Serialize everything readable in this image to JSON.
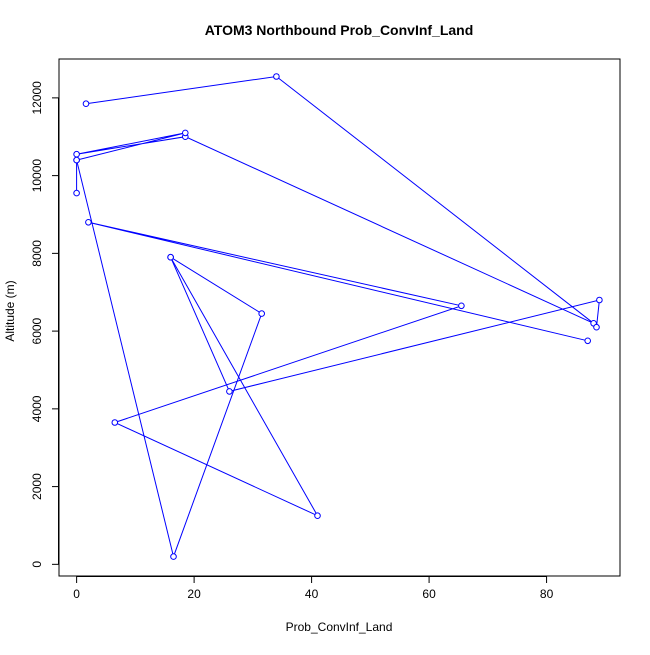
{
  "chart_data": {
    "type": "line",
    "title": "ATOM3 Northbound Prob_ConvInf_Land",
    "xlabel": "Prob_ConvInf_Land",
    "ylabel": "Altitude (m)",
    "xlim": [
      -3,
      92.5
    ],
    "ylim": [
      -300,
      13000
    ],
    "x_ticks": [
      0,
      20,
      40,
      60,
      80
    ],
    "y_ticks": [
      0,
      2000,
      4000,
      6000,
      8000,
      10000,
      12000
    ],
    "grid": false,
    "legend": "none",
    "series": [
      {
        "color": "#0000ff",
        "marker": "open-circle",
        "points": [
          {
            "x": 1.6,
            "y": 11850
          },
          {
            "x": 34.0,
            "y": 12550
          },
          {
            "x": 88.0,
            "y": 6200
          },
          {
            "x": 18.5,
            "y": 11000
          },
          {
            "x": 0.0,
            "y": 10550
          },
          {
            "x": 18.5,
            "y": 11100
          },
          {
            "x": 0.0,
            "y": 10400
          },
          {
            "x": 16.5,
            "y": 200
          },
          {
            "x": 31.5,
            "y": 6450
          },
          {
            "x": 16.0,
            "y": 7900
          },
          {
            "x": 41.0,
            "y": 1250
          },
          {
            "x": 6.5,
            "y": 3650
          },
          {
            "x": 65.5,
            "y": 6650
          },
          {
            "x": 2.0,
            "y": 8800
          },
          {
            "x": 87.0,
            "y": 5750
          }
        ]
      },
      {
        "color": "#0000ff",
        "marker": "open-circle",
        "points": [
          {
            "x": 0.0,
            "y": 9550
          },
          {
            "x": 0.0,
            "y": 10400
          }
        ]
      },
      {
        "color": "#0000ff",
        "marker": "open-circle",
        "points": [
          {
            "x": 16.0,
            "y": 7900
          },
          {
            "x": 26.0,
            "y": 4450
          },
          {
            "x": 89.0,
            "y": 6800
          },
          {
            "x": 88.5,
            "y": 6100
          }
        ]
      }
    ]
  }
}
